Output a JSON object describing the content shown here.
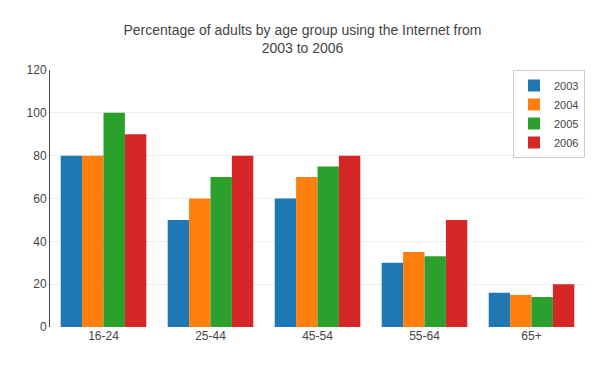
{
  "chart_data": {
    "type": "bar",
    "title": "Percentage of adults by age group using the Internet from\n2003 to 2006",
    "categories": [
      "16-24",
      "25-44",
      "45-54",
      "55-64",
      "65+"
    ],
    "series": [
      {
        "name": "2003",
        "values": [
          80,
          50,
          60,
          30,
          16
        ]
      },
      {
        "name": "2004",
        "values": [
          80,
          60,
          70,
          35,
          15
        ]
      },
      {
        "name": "2005",
        "values": [
          100,
          70,
          75,
          33,
          14
        ]
      },
      {
        "name": "2006",
        "values": [
          90,
          80,
          80,
          50,
          20
        ]
      }
    ],
    "ylim": [
      0,
      120
    ],
    "yticks": [
      0,
      20,
      40,
      60,
      80,
      100,
      120
    ],
    "grid": true,
    "legend": "upper right"
  }
}
